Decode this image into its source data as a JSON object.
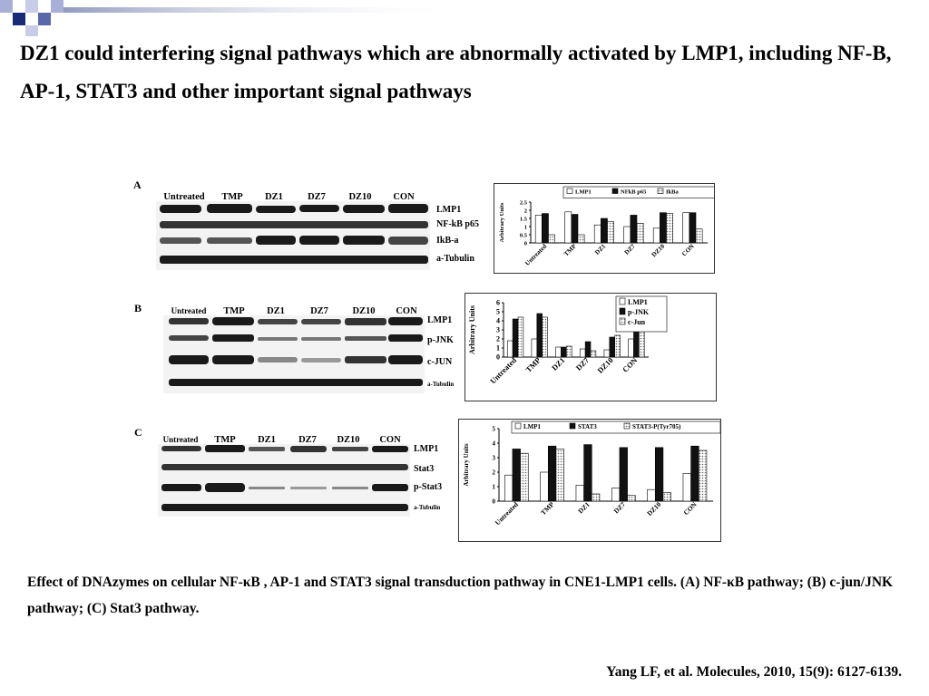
{
  "slide": {
    "title": "DZ1 could interfering signal pathways which are abnormally activated by LMP1, including NF-B, AP-1, STAT3 and other important signal pathways",
    "caption": "Effect of DNAzymes on cellular NF-κB , AP-1 and STAT3 signal transduction pathway in CNE1-LMP1 cells.   (A) NF-κB pathway; (B) c-jun/JNK pathway; (C) Stat3 pathway.",
    "citation": "Yang LF, et al. Molecules, 2010, 15(9): 6127-6139."
  },
  "panels": [
    {
      "label": "A",
      "lanes": [
        "Untreated",
        "TMP",
        "DZ1",
        "DZ7",
        "DZ10",
        "CON"
      ],
      "bands": [
        "LMP1",
        "NF-kB p65",
        "IkB-a",
        "a-Tubulin"
      ]
    },
    {
      "label": "B",
      "lanes": [
        "Untreated",
        "TMP",
        "DZ1",
        "DZ7",
        "DZ10",
        "CON"
      ],
      "bands": [
        "LMP1",
        "p-JNK",
        "c-JUN",
        "a-Tubulin"
      ]
    },
    {
      "label": "C",
      "lanes": [
        "Untreated",
        "TMP",
        "DZ1",
        "DZ7",
        "DZ10",
        "CON"
      ],
      "bands": [
        "LMP1",
        "Stat3",
        "p-Stat3",
        "a-Tubulin"
      ]
    }
  ],
  "chart_data": [
    {
      "type": "bar",
      "ylabel": "Arbitrary Units",
      "categories": [
        "Untreated",
        "TMP",
        "DZ1",
        "DZ7",
        "DZ10",
        "CON"
      ],
      "ylim": [
        0,
        2.5
      ],
      "yticks": [
        "2.5",
        "2",
        "1.5",
        "1",
        "0.5",
        "0"
      ],
      "legend_position": "top",
      "series": [
        {
          "name": "LMP1",
          "values": [
            1.7,
            1.9,
            1.1,
            1.0,
            0.9,
            1.85
          ]
        },
        {
          "name": "NFkB p65",
          "values": [
            1.8,
            1.75,
            1.5,
            1.7,
            1.85,
            1.85
          ]
        },
        {
          "name": "IkBa",
          "values": [
            0.5,
            0.5,
            1.3,
            1.2,
            1.8,
            0.85
          ]
        }
      ]
    },
    {
      "type": "bar",
      "ylabel": "Arbitrary Units",
      "categories": [
        "Untreated",
        "TMP",
        "DZ1",
        "DZ7",
        "DZ10",
        "CON"
      ],
      "ylim": [
        0,
        6
      ],
      "yticks": [
        "6",
        "5",
        "4",
        "3",
        "2",
        "1",
        "0"
      ],
      "legend_position": "top-right",
      "series": [
        {
          "name": "LMP1",
          "values": [
            1.8,
            2.0,
            1.1,
            0.9,
            0.8,
            2.0
          ]
        },
        {
          "name": "p-JNK",
          "values": [
            4.2,
            4.8,
            1.1,
            1.7,
            2.2,
            5.1
          ]
        },
        {
          "name": "c-Jun",
          "values": [
            4.4,
            4.4,
            1.2,
            0.7,
            2.4,
            4.6
          ]
        }
      ]
    },
    {
      "type": "bar",
      "ylabel": "Arbitrary Units",
      "categories": [
        "Untreated",
        "TMP",
        "DZ1",
        "DZ7",
        "DZ10",
        "CON"
      ],
      "ylim": [
        0,
        5
      ],
      "yticks": [
        "5",
        "4",
        "3",
        "2",
        "1",
        "0"
      ],
      "legend_position": "top",
      "series": [
        {
          "name": "LMP1",
          "values": [
            1.8,
            2.0,
            1.1,
            0.9,
            0.8,
            1.9
          ]
        },
        {
          "name": "STAT3",
          "values": [
            3.6,
            3.8,
            3.9,
            3.7,
            3.7,
            3.8
          ]
        },
        {
          "name": "STAT3-P(Tyr705)",
          "values": [
            3.3,
            3.6,
            0.5,
            0.4,
            0.6,
            3.5
          ]
        }
      ]
    }
  ]
}
